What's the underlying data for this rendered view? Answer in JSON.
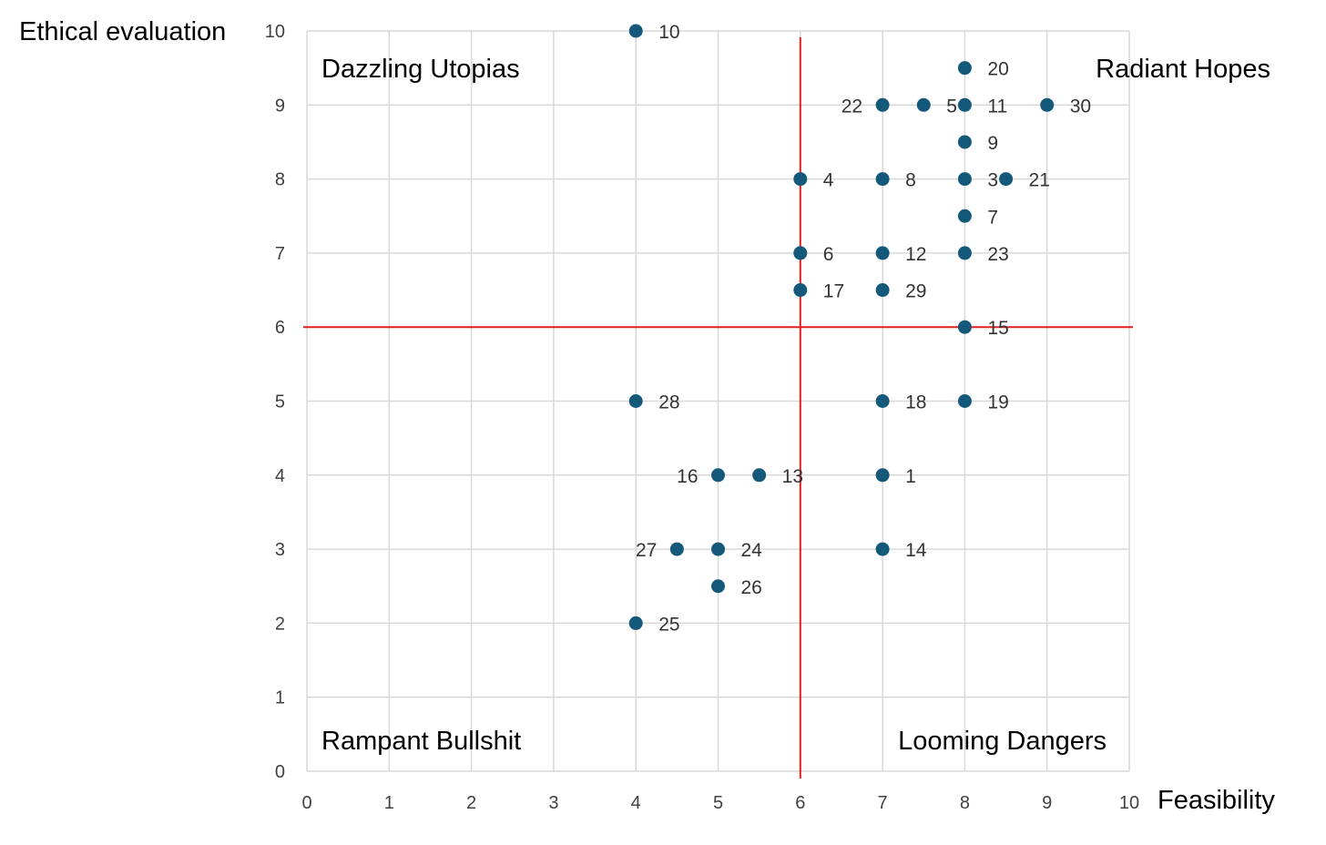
{
  "chart_data": {
    "type": "scatter",
    "title": "",
    "xlabel": "Feasibility",
    "ylabel": "Ethical evaluation",
    "xlim": [
      0,
      10
    ],
    "ylim": [
      0,
      10
    ],
    "xticks": [
      "0",
      "1",
      "2",
      "3",
      "4",
      "5",
      "6",
      "7",
      "8",
      "9",
      "10"
    ],
    "yticks": [
      "0",
      "1",
      "2",
      "3",
      "4",
      "5",
      "6",
      "7",
      "8",
      "9",
      "10"
    ],
    "grid": true,
    "threshold_x": 6,
    "threshold_y": 6,
    "quadrants": {
      "top_left": "Dazzling Utopias",
      "top_right": "Radiant Hopes",
      "bottom_left": "Rampant Bullshit",
      "bottom_right": "Looming Dangers"
    },
    "points": [
      {
        "label": "1",
        "x": 7,
        "y": 4,
        "label_side": "right"
      },
      {
        "label": "3",
        "x": 8,
        "y": 8,
        "label_side": "right"
      },
      {
        "label": "4",
        "x": 6,
        "y": 8,
        "label_side": "right"
      },
      {
        "label": "5",
        "x": 7.5,
        "y": 9,
        "label_side": "right"
      },
      {
        "label": "6",
        "x": 6,
        "y": 7,
        "label_side": "right"
      },
      {
        "label": "7",
        "x": 8,
        "y": 7.5,
        "label_side": "right"
      },
      {
        "label": "8",
        "x": 7,
        "y": 8,
        "label_side": "right"
      },
      {
        "label": "9",
        "x": 8,
        "y": 8.5,
        "label_side": "right"
      },
      {
        "label": "10",
        "x": 4,
        "y": 10,
        "label_side": "right"
      },
      {
        "label": "11",
        "x": 8,
        "y": 9,
        "label_side": "right"
      },
      {
        "label": "12",
        "x": 7,
        "y": 7,
        "label_side": "right"
      },
      {
        "label": "13",
        "x": 5.5,
        "y": 4,
        "label_side": "right"
      },
      {
        "label": "14",
        "x": 7,
        "y": 3,
        "label_side": "right"
      },
      {
        "label": "15",
        "x": 8,
        "y": 6,
        "label_side": "right"
      },
      {
        "label": "16",
        "x": 5,
        "y": 4,
        "label_side": "left"
      },
      {
        "label": "17",
        "x": 6,
        "y": 6.5,
        "label_side": "right"
      },
      {
        "label": "18",
        "x": 7,
        "y": 5,
        "label_side": "right"
      },
      {
        "label": "19",
        "x": 8,
        "y": 5,
        "label_side": "right"
      },
      {
        "label": "20",
        "x": 8,
        "y": 9.5,
        "label_side": "right"
      },
      {
        "label": "21",
        "x": 8.5,
        "y": 8,
        "label_side": "right"
      },
      {
        "label": "22",
        "x": 7,
        "y": 9,
        "label_side": "left"
      },
      {
        "label": "23",
        "x": 8,
        "y": 7,
        "label_side": "right"
      },
      {
        "label": "24",
        "x": 5,
        "y": 3,
        "label_side": "right"
      },
      {
        "label": "25",
        "x": 4,
        "y": 2,
        "label_side": "right"
      },
      {
        "label": "26",
        "x": 5,
        "y": 2.5,
        "label_side": "right"
      },
      {
        "label": "27",
        "x": 4.5,
        "y": 3,
        "label_side": "left"
      },
      {
        "label": "28",
        "x": 4,
        "y": 5,
        "label_side": "right"
      },
      {
        "label": "29",
        "x": 7,
        "y": 6.5,
        "label_side": "right"
      },
      {
        "label": "30",
        "x": 9,
        "y": 9,
        "label_side": "right"
      }
    ],
    "colors": {
      "point": "#14587a",
      "threshold": "#e02020",
      "grid": "#d9d9d9"
    }
  }
}
